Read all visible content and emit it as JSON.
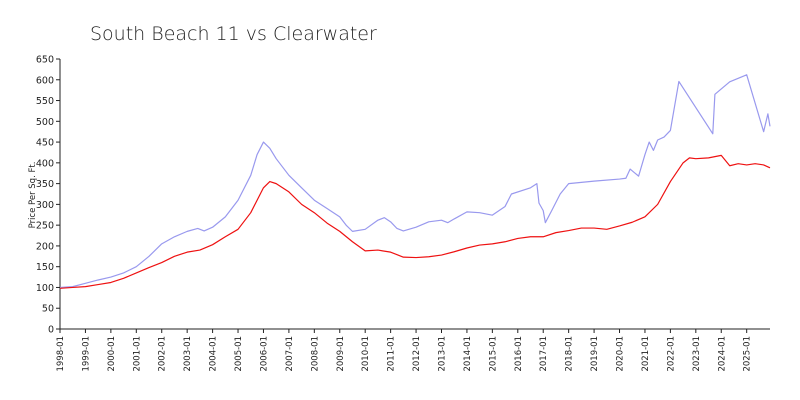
{
  "chart_data": {
    "type": "line",
    "title": "South Beach 11 vs Clearwater",
    "xlabel": "",
    "ylabel": "Price Per Sq. Ft.",
    "xlim": [
      "1998-01",
      "2025-12"
    ],
    "ylim": [
      0,
      650
    ],
    "y_ticks": [
      0,
      50,
      100,
      150,
      200,
      250,
      300,
      350,
      400,
      450,
      500,
      550,
      600,
      650
    ],
    "x_tick_labels": [
      "1998-01",
      "1999-01",
      "2000-01",
      "2001-01",
      "2002-01",
      "2003-01",
      "2004-01",
      "2005-01",
      "2006-01",
      "2007-01",
      "2008-01",
      "2009-01",
      "2010-01",
      "2011-01",
      "2012-01",
      "2013-01",
      "2014-01",
      "2015-01",
      "2016-01",
      "2017-01",
      "2018-01",
      "2019-01",
      "2020-01",
      "2021-01",
      "2022-01",
      "2023-01",
      "2024-01",
      "2025-01"
    ],
    "grid": false,
    "legend": "none",
    "series": [
      {
        "color": "#9999ee",
        "points": [
          [
            "1998-01",
            100
          ],
          [
            "1998-07",
            102
          ],
          [
            "1999-01",
            110
          ],
          [
            "1999-07",
            118
          ],
          [
            "2000-01",
            125
          ],
          [
            "2000-07",
            135
          ],
          [
            "2001-01",
            150
          ],
          [
            "2001-07",
            175
          ],
          [
            "2002-01",
            205
          ],
          [
            "2002-07",
            222
          ],
          [
            "2003-01",
            235
          ],
          [
            "2003-06",
            242
          ],
          [
            "2003-09",
            236
          ],
          [
            "2004-01",
            245
          ],
          [
            "2004-07",
            270
          ],
          [
            "2005-01",
            310
          ],
          [
            "2005-07",
            370
          ],
          [
            "2005-10",
            420
          ],
          [
            "2006-01",
            450
          ],
          [
            "2006-04",
            435
          ],
          [
            "2006-07",
            410
          ],
          [
            "2007-01",
            370
          ],
          [
            "2007-07",
            340
          ],
          [
            "2008-01",
            310
          ],
          [
            "2008-07",
            290
          ],
          [
            "2009-01",
            270
          ],
          [
            "2009-04",
            250
          ],
          [
            "2009-07",
            235
          ],
          [
            "2010-01",
            240
          ],
          [
            "2010-07",
            262
          ],
          [
            "2010-10",
            268
          ],
          [
            "2011-01",
            258
          ],
          [
            "2011-04",
            242
          ],
          [
            "2011-07",
            236
          ],
          [
            "2012-01",
            245
          ],
          [
            "2012-07",
            258
          ],
          [
            "2013-01",
            262
          ],
          [
            "2013-04",
            256
          ],
          [
            "2013-07",
            265
          ],
          [
            "2014-01",
            282
          ],
          [
            "2014-07",
            280
          ],
          [
            "2015-01",
            274
          ],
          [
            "2015-07",
            295
          ],
          [
            "2015-10",
            325
          ],
          [
            "2016-07",
            340
          ],
          [
            "2016-10",
            350
          ],
          [
            "2016-11",
            303
          ],
          [
            "2017-01",
            285
          ],
          [
            "2017-02",
            256
          ],
          [
            "2017-05",
            285
          ],
          [
            "2017-09",
            325
          ],
          [
            "2018-01",
            350
          ],
          [
            "2019-01",
            356
          ],
          [
            "2020-01",
            361
          ],
          [
            "2020-04",
            363
          ],
          [
            "2020-06",
            385
          ],
          [
            "2020-10",
            368
          ],
          [
            "2021-01",
            420
          ],
          [
            "2021-03",
            450
          ],
          [
            "2021-05",
            430
          ],
          [
            "2021-07",
            455
          ],
          [
            "2021-10",
            462
          ],
          [
            "2022-01",
            478
          ],
          [
            "2022-05",
            596
          ],
          [
            "2023-09",
            470
          ],
          [
            "2023-10",
            565
          ],
          [
            "2024-01",
            578
          ],
          [
            "2024-05",
            595
          ],
          [
            "2025-01",
            612
          ],
          [
            "2025-09",
            475
          ],
          [
            "2025-11",
            518
          ],
          [
            "2025-12",
            488
          ]
        ]
      },
      {
        "color": "#ee1111",
        "points": [
          [
            "1998-01",
            98
          ],
          [
            "1998-07",
            100
          ],
          [
            "1999-01",
            102
          ],
          [
            "1999-07",
            107
          ],
          [
            "2000-01",
            112
          ],
          [
            "2000-07",
            122
          ],
          [
            "2001-01",
            135
          ],
          [
            "2001-07",
            148
          ],
          [
            "2002-01",
            160
          ],
          [
            "2002-07",
            175
          ],
          [
            "2003-01",
            185
          ],
          [
            "2003-07",
            190
          ],
          [
            "2004-01",
            203
          ],
          [
            "2004-07",
            222
          ],
          [
            "2005-01",
            240
          ],
          [
            "2005-07",
            280
          ],
          [
            "2006-01",
            340
          ],
          [
            "2006-04",
            355
          ],
          [
            "2006-07",
            350
          ],
          [
            "2007-01",
            330
          ],
          [
            "2007-07",
            300
          ],
          [
            "2008-01",
            280
          ],
          [
            "2008-07",
            255
          ],
          [
            "2009-01",
            235
          ],
          [
            "2009-07",
            210
          ],
          [
            "2010-01",
            188
          ],
          [
            "2010-07",
            190
          ],
          [
            "2011-01",
            185
          ],
          [
            "2011-07",
            173
          ],
          [
            "2012-01",
            172
          ],
          [
            "2012-07",
            174
          ],
          [
            "2013-01",
            178
          ],
          [
            "2013-07",
            186
          ],
          [
            "2014-01",
            195
          ],
          [
            "2014-07",
            202
          ],
          [
            "2015-01",
            205
          ],
          [
            "2015-07",
            210
          ],
          [
            "2016-01",
            218
          ],
          [
            "2016-07",
            222
          ],
          [
            "2017-01",
            222
          ],
          [
            "2017-07",
            232
          ],
          [
            "2018-01",
            237
          ],
          [
            "2018-07",
            243
          ],
          [
            "2019-01",
            243
          ],
          [
            "2019-07",
            240
          ],
          [
            "2020-01",
            248
          ],
          [
            "2020-07",
            257
          ],
          [
            "2021-01",
            270
          ],
          [
            "2021-07",
            300
          ],
          [
            "2022-01",
            355
          ],
          [
            "2022-07",
            400
          ],
          [
            "2022-10",
            412
          ],
          [
            "2023-01",
            410
          ],
          [
            "2023-07",
            412
          ],
          [
            "2024-01",
            418
          ],
          [
            "2024-05",
            393
          ],
          [
            "2024-09",
            398
          ],
          [
            "2025-01",
            395
          ],
          [
            "2025-05",
            398
          ],
          [
            "2025-09",
            395
          ],
          [
            "2025-12",
            388
          ]
        ]
      }
    ]
  }
}
